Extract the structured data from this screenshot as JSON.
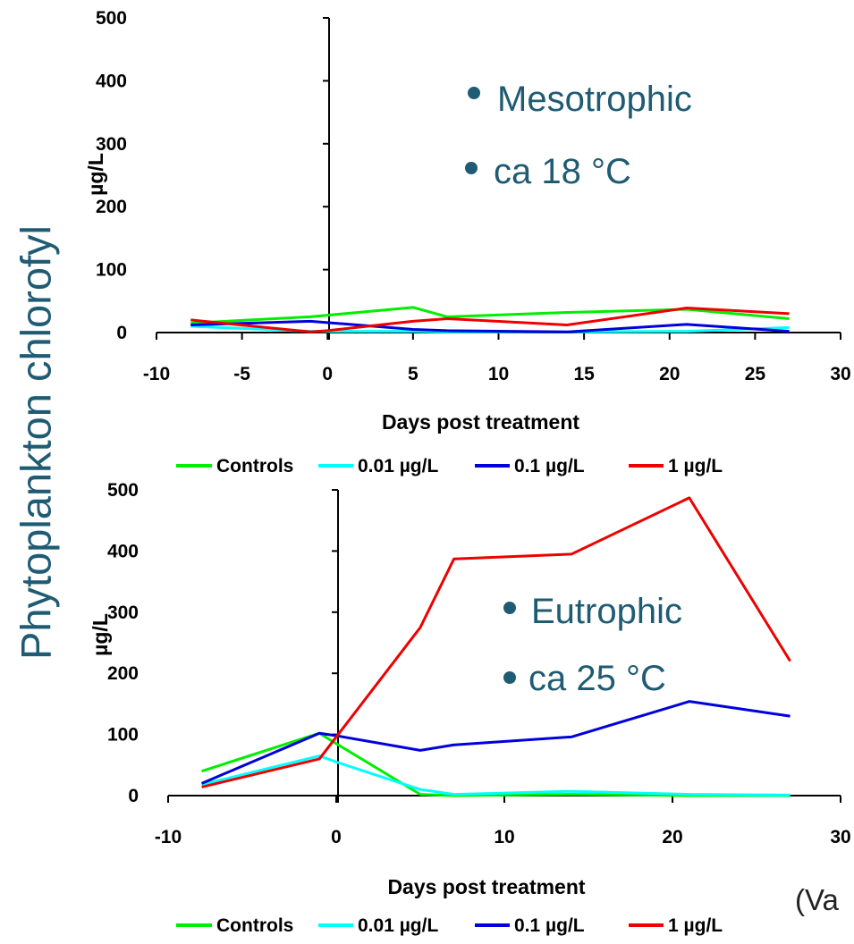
{
  "side_label": "Phytoplankton chlorofyl",
  "cut_label": "(Va",
  "colors": {
    "controls": "#00ee00",
    "low": "#00ffff",
    "mid": "#0000dd",
    "high": "#ee0000",
    "annotation": "#1f5b73"
  },
  "chart_data": [
    {
      "type": "line",
      "ylabel": "µg/L",
      "xlabel": "Days post treatment",
      "xlim": [
        -10,
        30
      ],
      "ylim": [
        0,
        500
      ],
      "xticks": [
        -10,
        -5,
        0,
        5,
        10,
        15,
        20,
        25,
        30
      ],
      "xtick_labels": [
        "-10",
        "-5",
        "0",
        "5",
        "10",
        "15",
        "20",
        "25",
        "30"
      ],
      "yticks": [
        0,
        100,
        200,
        300,
        400,
        500
      ],
      "ytick_labels": [
        "0",
        "100",
        "200",
        "300",
        "400",
        "500"
      ],
      "annotations": [
        "Mesotrophic",
        "ca 18 °C"
      ],
      "legend_position": "bottom",
      "grid": false,
      "series": [
        {
          "name": "Controls",
          "color": "#00ee00",
          "x": [
            -8,
            -1,
            5,
            7,
            14,
            21,
            27
          ],
          "y": [
            15,
            25,
            40,
            25,
            32,
            37,
            22
          ]
        },
        {
          "name": "0.01 µg/L",
          "color": "#00ffff",
          "x": [
            -8,
            -1,
            5,
            7,
            14,
            21,
            27
          ],
          "y": [
            10,
            2,
            2,
            1,
            1,
            2,
            8
          ]
        },
        {
          "name": "0.1 µg/L",
          "color": "#0000dd",
          "x": [
            -8,
            -1,
            5,
            7,
            14,
            21,
            27
          ],
          "y": [
            12,
            18,
            5,
            3,
            1,
            13,
            2
          ]
        },
        {
          "name": "1 µg/L",
          "color": "#ee0000",
          "x": [
            -8,
            -1,
            0,
            5,
            7,
            14,
            21,
            27
          ],
          "y": [
            20,
            1,
            3,
            18,
            22,
            12,
            39,
            30
          ]
        }
      ]
    },
    {
      "type": "line",
      "ylabel": "µg/L",
      "xlabel": "Days post treatment",
      "xlim": [
        -10,
        30
      ],
      "ylim": [
        0,
        500
      ],
      "xticks": [
        -10,
        0,
        10,
        20,
        30
      ],
      "xtick_labels": [
        "-10",
        "0",
        "10",
        "20",
        "30"
      ],
      "yticks": [
        0,
        100,
        200,
        300,
        400,
        500
      ],
      "ytick_labels": [
        "0",
        "100",
        "200",
        "300",
        "400",
        "500"
      ],
      "annotations": [
        "Eutrophic",
        "ca 25 °C"
      ],
      "legend_position": "bottom",
      "grid": false,
      "series": [
        {
          "name": "Controls",
          "color": "#00ee00",
          "x": [
            -8,
            -1,
            0,
            5,
            7,
            14,
            21,
            27
          ],
          "y": [
            40,
            102,
            85,
            2,
            0,
            2,
            0,
            0
          ]
        },
        {
          "name": "0.01 µg/L",
          "color": "#00ffff",
          "x": [
            -8,
            -1,
            0,
            5,
            7,
            14,
            21,
            27
          ],
          "y": [
            18,
            65,
            55,
            10,
            2,
            7,
            2,
            1
          ]
        },
        {
          "name": "0.1 µg/L",
          "color": "#0000dd",
          "x": [
            -8,
            -1,
            0,
            5,
            7,
            14,
            21,
            27
          ],
          "y": [
            20,
            102,
            98,
            74,
            83,
            96,
            154,
            130
          ]
        },
        {
          "name": "1 µg/L",
          "color": "#ee0000",
          "x": [
            -8,
            -1,
            5,
            7,
            14,
            21,
            27
          ],
          "y": [
            14,
            60,
            275,
            387,
            395,
            487,
            220
          ]
        }
      ]
    }
  ]
}
